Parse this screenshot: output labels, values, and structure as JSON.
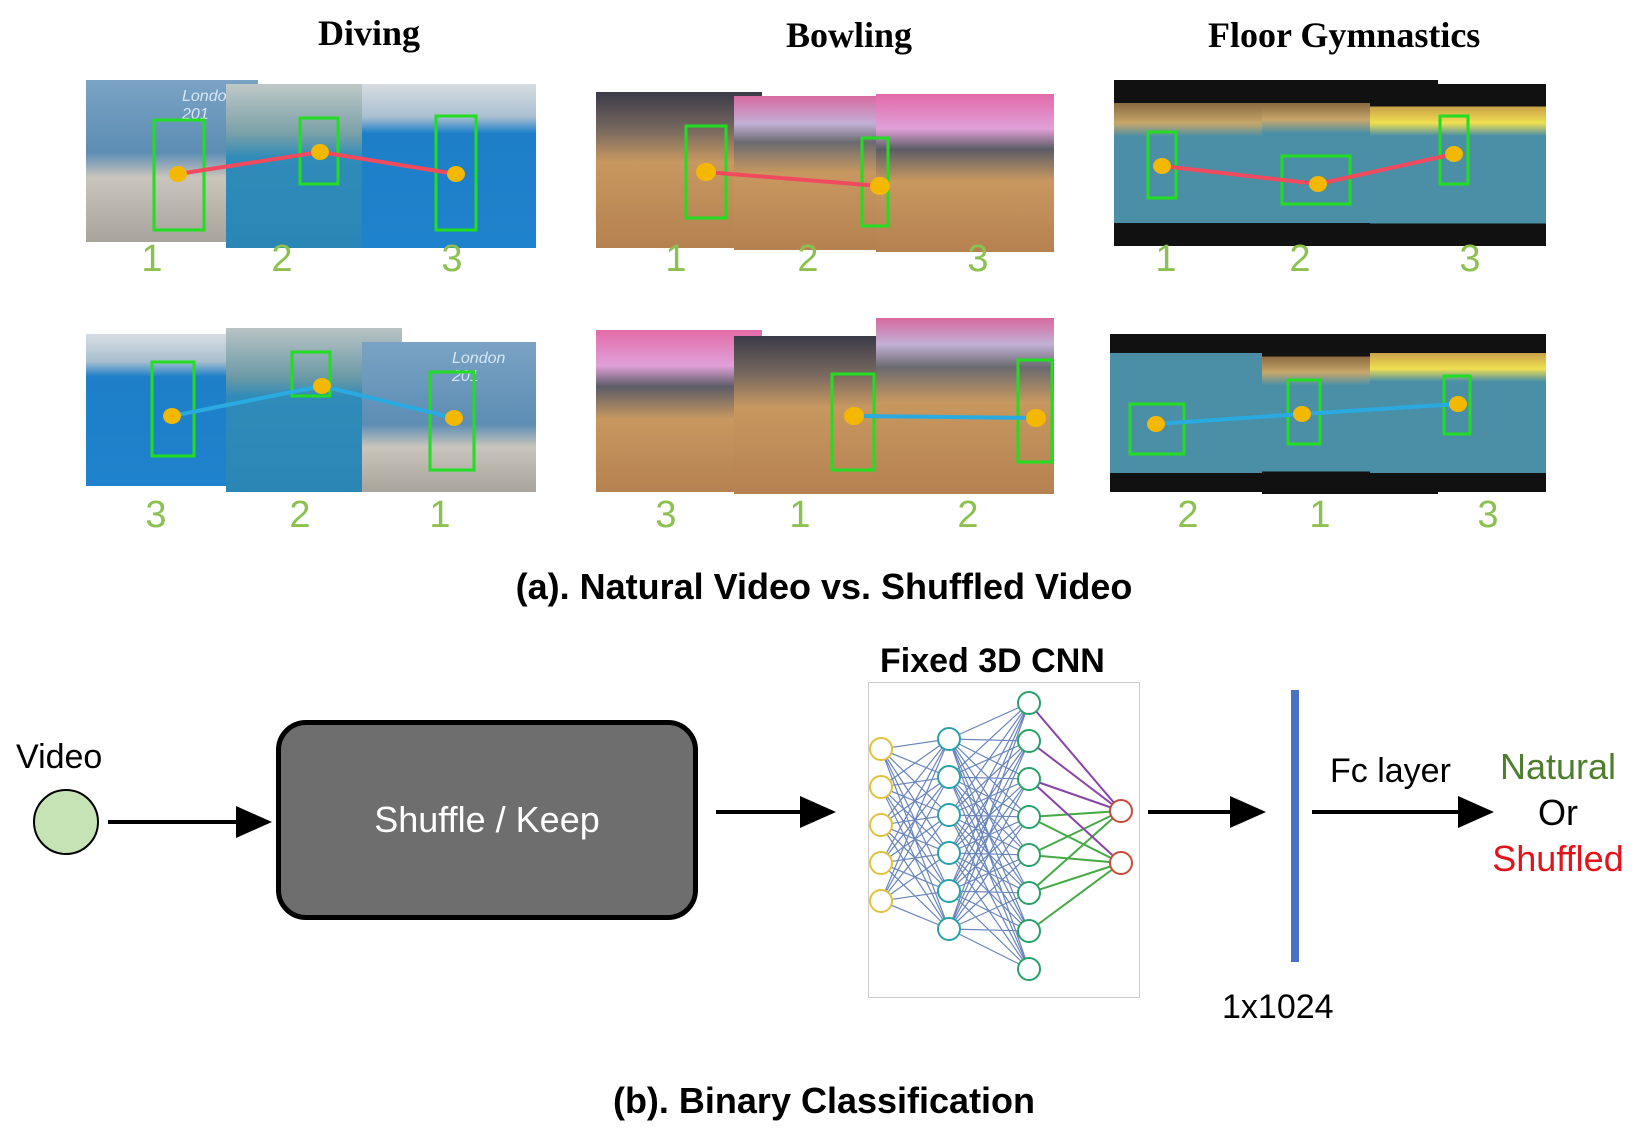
{
  "panel_a": {
    "sports": [
      {
        "title": "Diving",
        "natural_order": [
          "1",
          "2",
          "3"
        ],
        "shuffled_order": [
          "3",
          "2",
          "1"
        ]
      },
      {
        "title": "Bowling",
        "natural_order": [
          "1",
          "2",
          "3"
        ],
        "shuffled_order": [
          "3",
          "1",
          "2"
        ]
      },
      {
        "title": "Floor Gymnastics",
        "natural_order": [
          "1",
          "2",
          "3"
        ],
        "shuffled_order": [
          "2",
          "1",
          "3"
        ]
      }
    ],
    "caption": "(a). Natural Video vs. Shuffled Video",
    "watermarks": {
      "diving_top": "London 201",
      "diving_bottom": "London 201"
    }
  },
  "panel_b": {
    "input_label": "Video",
    "shuffle_label": "Shuffle / Keep",
    "cnn_title": "Fixed 3D CNN",
    "feature_label": "1x1024",
    "fc_label": "Fc layer",
    "output": {
      "natural": "Natural",
      "or": "Or",
      "shuffled": "Shuffled"
    },
    "caption": "(b). Binary Classification"
  },
  "colors": {
    "natural_track": "#f04a5e",
    "shuffled_track": "#29aae1",
    "bbox": "#22dd22",
    "joint": "#f5b800",
    "frame_number": "#8cc152",
    "natural_text": "#4e7d2c",
    "shuffled_text": "#e3121b",
    "video_node": "#c5e3b5",
    "feature_bar": "#4a72c4"
  }
}
